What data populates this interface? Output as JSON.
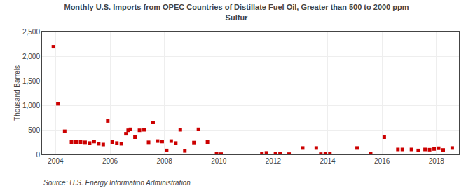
{
  "chart_data": {
    "type": "scatter",
    "title": "Monthly U.S. Imports from OPEC Countries of Distillate Fuel Oil, Greater than 500 to 2000 ppm\nSulfur",
    "ylabel": "Thousand Barrels",
    "annotations": [
      "Source: U.S. Energy Information Administration"
    ],
    "color": "#cc0000",
    "marker": "square",
    "grid": true,
    "xlim": [
      2003.5,
      2018.83
    ],
    "xticks": [
      2004,
      2006,
      2008,
      2010,
      2012,
      2014,
      2016,
      2018
    ],
    "ylim": [
      0,
      2500
    ],
    "yticks": [
      0,
      500,
      {
        "value": 1000,
        "label": "1,000"
      },
      {
        "value": 1500,
        "label": "1,500"
      },
      {
        "value": 2000,
        "label": "2,000"
      },
      {
        "value": 2500,
        "label": "2,500"
      }
    ],
    "x": [
      2003.917,
      2004.083,
      2004.333,
      2004.583,
      2004.75,
      2004.917,
      2005.083,
      2005.25,
      2005.417,
      2005.583,
      2005.75,
      2005.917,
      2006.083,
      2006.25,
      2006.417,
      2006.583,
      2006.667,
      2006.75,
      2006.917,
      2007.083,
      2007.25,
      2007.417,
      2007.583,
      2007.75,
      2007.917,
      2008.083,
      2008.25,
      2008.417,
      2008.583,
      2008.75,
      2009.083,
      2009.25,
      2009.583,
      2009.917,
      2010.083,
      2011.583,
      2011.75,
      2012.083,
      2012.25,
      2012.583,
      2013.083,
      2013.583,
      2013.75,
      2013.917,
      2014.083,
      2015.083,
      2015.583,
      2016.083,
      2016.583,
      2016.75,
      2017.083,
      2017.333,
      2017.583,
      2017.75,
      2017.917,
      2018.083,
      2018.25,
      2018.583
    ],
    "values": [
      2192,
      1030,
      470,
      250,
      250,
      250,
      245,
      230,
      260,
      215,
      200,
      680,
      250,
      230,
      215,
      420,
      490,
      510,
      350,
      490,
      500,
      245,
      650,
      270,
      260,
      80,
      270,
      230,
      500,
      70,
      240,
      510,
      250,
      10,
      5,
      15,
      30,
      20,
      15,
      5,
      130,
      130,
      5,
      10,
      10,
      130,
      10,
      350,
      100,
      100,
      100,
      80,
      100,
      95,
      110,
      125,
      90,
      130
    ]
  }
}
